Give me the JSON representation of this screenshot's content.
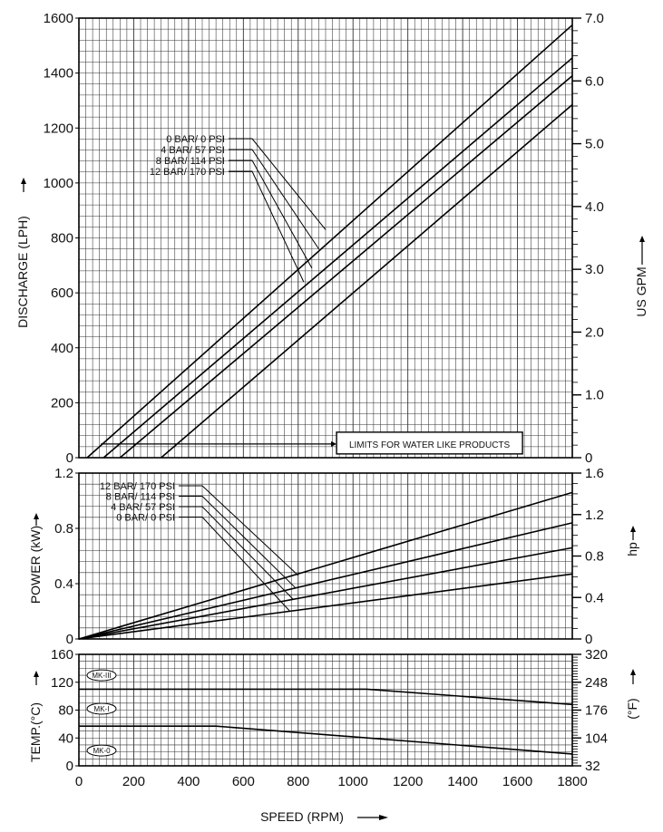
{
  "chart_data": [
    {
      "type": "line",
      "panel": "discharge",
      "xlabel": "SPEED (RPM)",
      "ylabel": "DISCHARGE (LPH)",
      "y2label": "US GPM",
      "xlim": [
        0,
        1800
      ],
      "ylim": [
        0,
        1600
      ],
      "y2lim": [
        0,
        7.0
      ],
      "grid": true,
      "x_ticks": [
        "0",
        "200",
        "400",
        "600",
        "800",
        "1000",
        "1200",
        "1400",
        "1600",
        "1800"
      ],
      "y_ticks": [
        "0",
        "200",
        "400",
        "600",
        "800",
        "1000",
        "1200",
        "1400",
        "1600"
      ],
      "y2_ticks": [
        "0",
        "1.0",
        "2.0",
        "3.0",
        "4.0",
        "5.0",
        "6.0",
        "7.0"
      ],
      "series": [
        {
          "name": "0 BAR/ 0 PSI",
          "x": [
            30,
            1800
          ],
          "y": [
            0,
            1575
          ]
        },
        {
          "name": "4 BAR/ 57 PSI",
          "x": [
            90,
            1800
          ],
          "y": [
            0,
            1455
          ]
        },
        {
          "name": "8 BAR/ 114 PSI",
          "x": [
            150,
            1800
          ],
          "y": [
            0,
            1390
          ]
        },
        {
          "name": "12 BAR/ 170 PSI",
          "x": [
            300,
            1800
          ],
          "y": [
            0,
            1285
          ]
        }
      ],
      "legend": [
        "0 BAR/   0 PSI",
        "4 BAR/  57 PSI",
        "8 BAR/ 114 PSI",
        "12 BAR/ 170 PSI"
      ],
      "annotation": "LIMITS FOR WATER LIKE PRODUCTS"
    },
    {
      "type": "line",
      "panel": "power",
      "ylabel": "POWER (kW)",
      "y2label": "hp",
      "xlim": [
        0,
        1800
      ],
      "ylim": [
        0,
        1.2
      ],
      "y2lim": [
        0,
        1.6
      ],
      "grid": true,
      "y_ticks": [
        "0",
        "0.4",
        "0.8",
        "1.2"
      ],
      "y2_ticks": [
        "0",
        "0.4",
        "0.8",
        "1.2",
        "1.6"
      ],
      "series": [
        {
          "name": "12 BAR/ 170 PSI",
          "x": [
            0,
            1800
          ],
          "y": [
            0,
            1.06
          ]
        },
        {
          "name": "8 BAR/ 114 PSI",
          "x": [
            0,
            1800
          ],
          "y": [
            0,
            0.84
          ]
        },
        {
          "name": "4 BAR/ 57 PSI",
          "x": [
            0,
            1800
          ],
          "y": [
            0,
            0.66
          ]
        },
        {
          "name": "0 BAR/ 0 PSI",
          "x": [
            0,
            1800
          ],
          "y": [
            0,
            0.47
          ]
        }
      ],
      "legend": [
        "12 BAR/ 170 PSI",
        "8 BAR/ 114 PSI",
        "4 BAR/  57 PSI",
        "0 BAR/   0 PSI"
      ]
    },
    {
      "type": "line",
      "panel": "temperature",
      "ylabel": "TEMP.(°C)",
      "y2label": "(°F)",
      "xlim": [
        0,
        1800
      ],
      "ylim": [
        0,
        160
      ],
      "y2lim": [
        32,
        320
      ],
      "grid": true,
      "y_ticks": [
        "0",
        "40",
        "80",
        "120",
        "160"
      ],
      "y2_ticks": [
        "32",
        "104",
        "176",
        "248",
        "320"
      ],
      "series": [
        {
          "name": "MK-III",
          "x": [
            0,
            1050,
            1800
          ],
          "y": [
            110,
            110,
            88
          ]
        },
        {
          "name": "MK-I",
          "x": [
            0,
            500,
            1800
          ],
          "y": [
            57,
            57,
            17
          ]
        }
      ],
      "markers": [
        "MK-III",
        "MK-I",
        "MK-0"
      ]
    }
  ]
}
